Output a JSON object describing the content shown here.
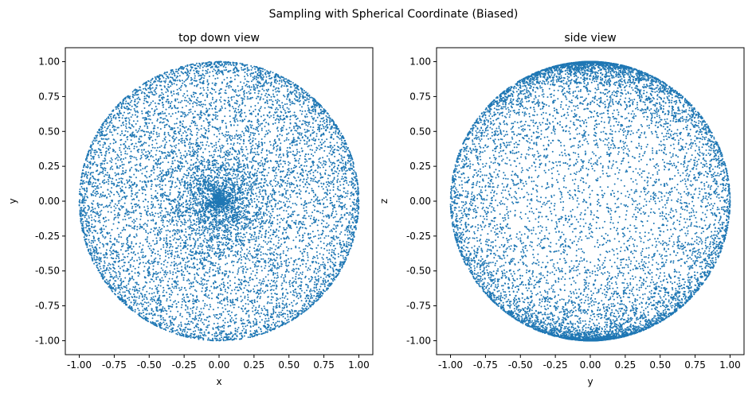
{
  "figure": {
    "suptitle": "Sampling with Spherical Coordinate (Biased)"
  },
  "chart_data": [
    {
      "type": "scatter",
      "title": "top down view",
      "xlabel": "x",
      "ylabel": "y",
      "xlim": [
        -1.1,
        1.1
      ],
      "ylim": [
        -1.1,
        1.1
      ],
      "xticks": [
        "-1.00",
        "-0.75",
        "-0.50",
        "-0.25",
        "0.00",
        "0.25",
        "0.50",
        "0.75",
        "1.00"
      ],
      "yticks": [
        "-1.00",
        "-0.75",
        "-0.50",
        "-0.25",
        "0.00",
        "0.25",
        "0.50",
        "0.75",
        "1.00"
      ],
      "grid": false,
      "color": "#1f77b4",
      "marker_size": 1,
      "distribution": "projection of spherical-coordinate samples onto the x-y plane",
      "sample_count": 10000
    },
    {
      "type": "scatter",
      "title": "side view",
      "xlabel": "y",
      "ylabel": "z",
      "xlim": [
        -1.1,
        1.1
      ],
      "ylim": [
        -1.1,
        1.1
      ],
      "xticks": [
        "-1.00",
        "-0.75",
        "-0.50",
        "-0.25",
        "0.00",
        "0.25",
        "0.50",
        "0.75",
        "1.00"
      ],
      "yticks": [
        "-1.00",
        "-0.75",
        "-0.50",
        "-0.25",
        "0.00",
        "0.25",
        "0.50",
        "0.75",
        "1.00"
      ],
      "grid": false,
      "color": "#1f77b4",
      "marker_size": 1,
      "distribution": "projection of spherical-coordinate samples onto the y-z plane",
      "sample_count": 10000
    }
  ]
}
